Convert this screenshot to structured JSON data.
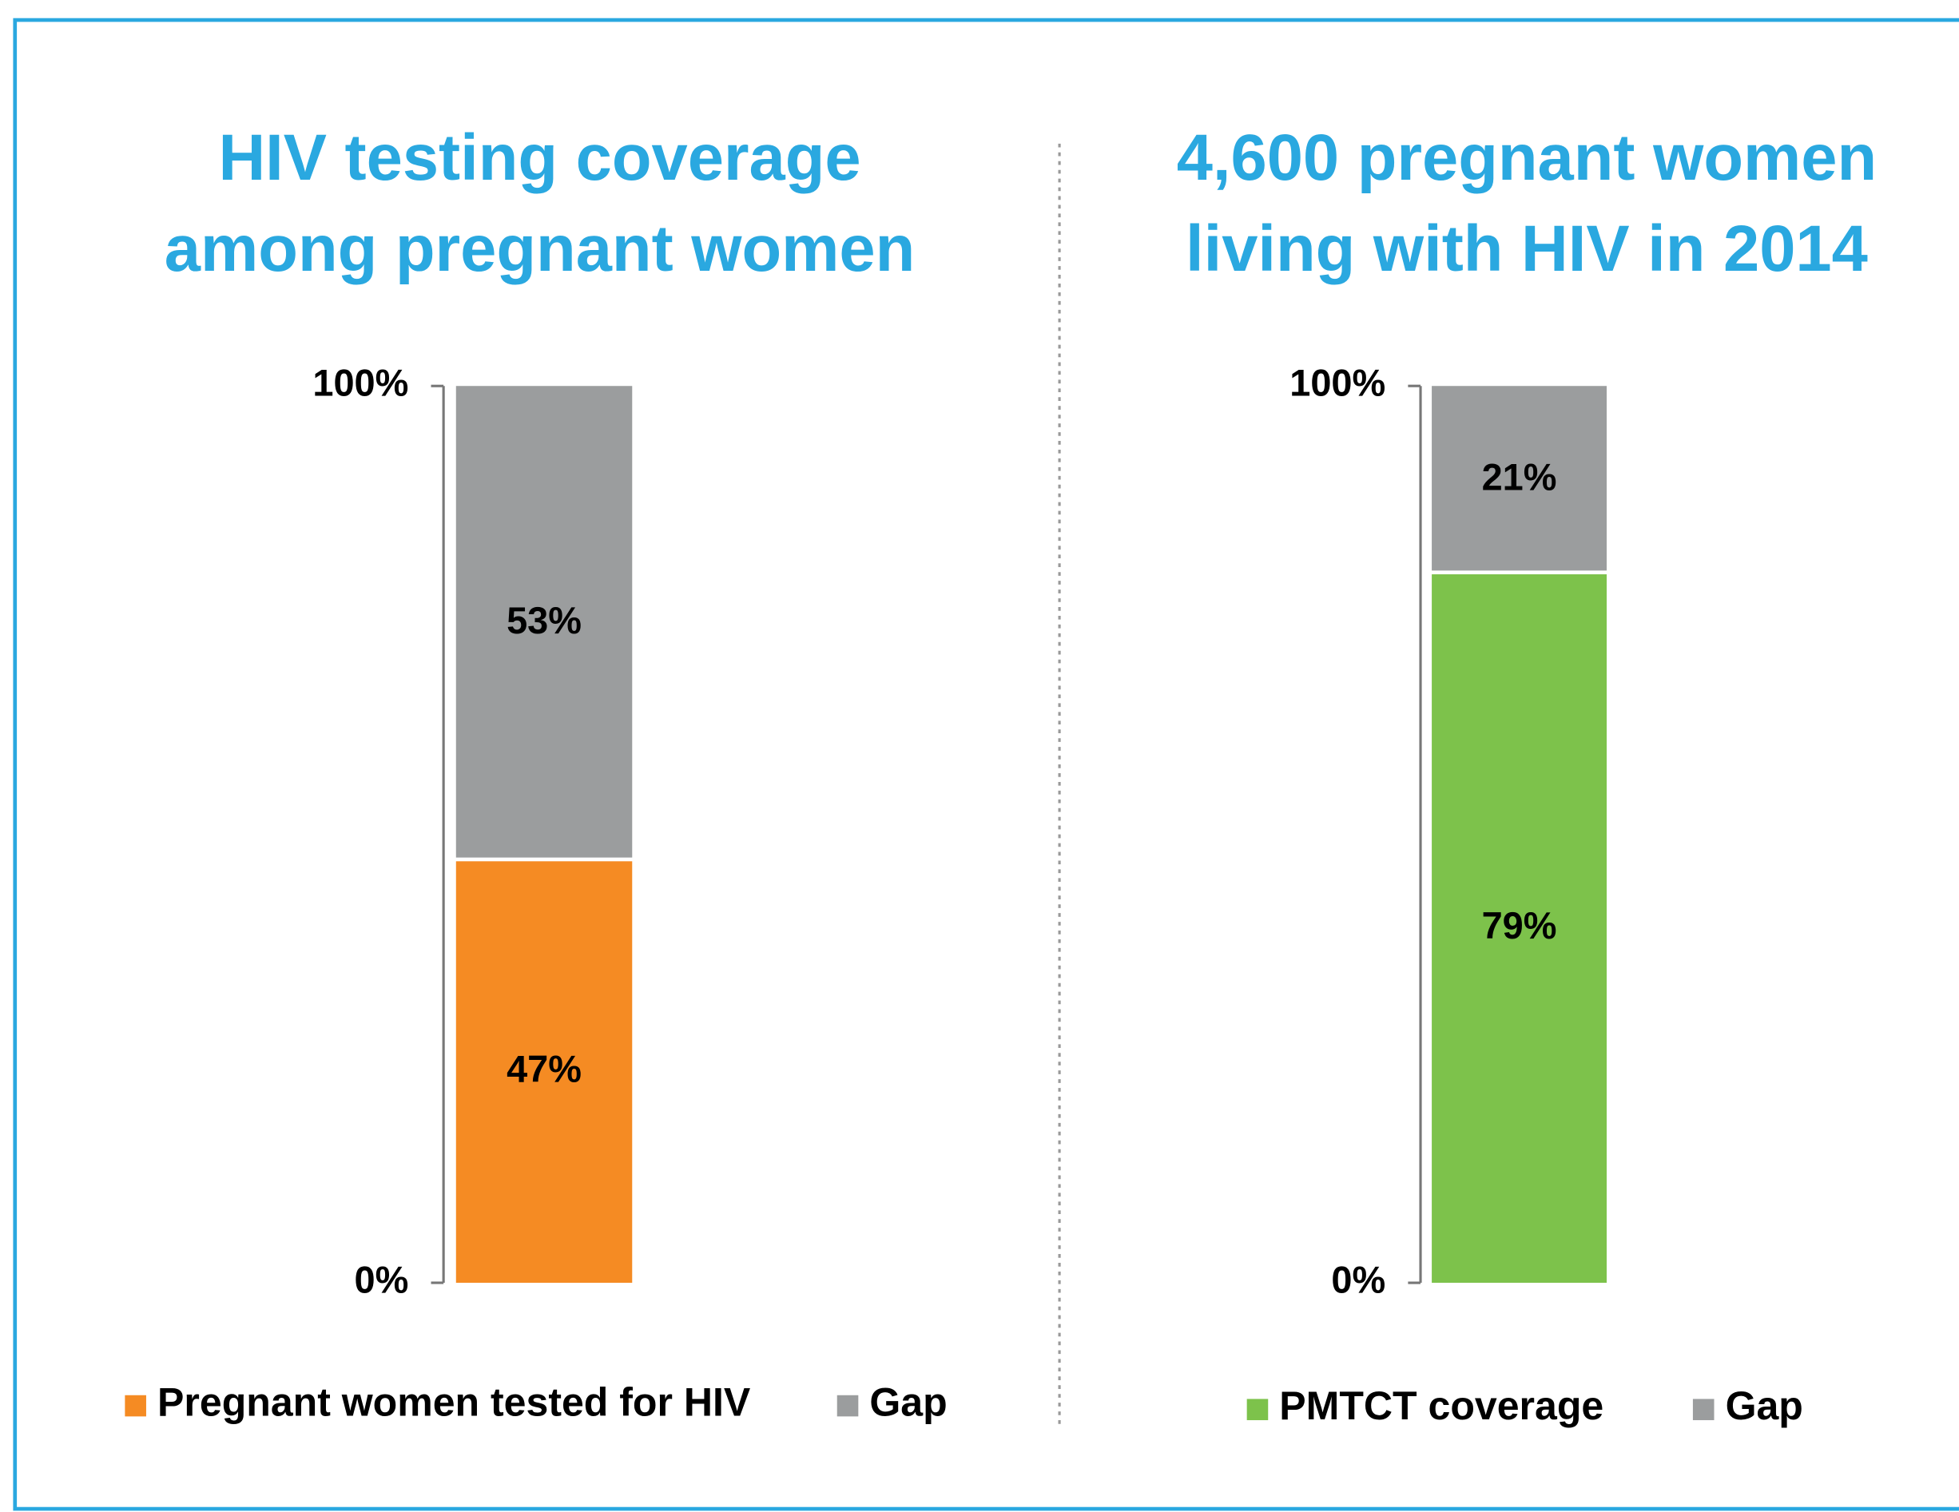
{
  "chart_data": [
    {
      "type": "stacked_bar",
      "title": [
        "HIV testing coverage",
        "among pregnant women"
      ],
      "series": [
        {
          "name": "Pregnant women tested for HIV",
          "color": "#f58b23",
          "values": [
            47
          ],
          "value_labels": [
            "47%"
          ]
        },
        {
          "name": "Gap",
          "color": "#9b9d9e",
          "values": [
            53
          ],
          "value_labels": [
            "53%"
          ]
        }
      ],
      "ylim": [
        0,
        100
      ],
      "yticks": [
        {
          "value": 0,
          "label": "0%"
        },
        {
          "value": 100,
          "label": "100%"
        }
      ]
    },
    {
      "type": "stacked_bar",
      "title": [
        "4,600 pregnant women",
        "living with HIV in 2014"
      ],
      "series": [
        {
          "name": "PMTCT coverage",
          "color": "#7dc24b",
          "values": [
            79
          ],
          "value_labels": [
            "79%"
          ]
        },
        {
          "name": "Gap",
          "color": "#9b9d9e",
          "values": [
            21
          ],
          "value_labels": [
            "21%"
          ]
        }
      ],
      "ylim": [
        0,
        100
      ],
      "yticks": [
        {
          "value": 0,
          "label": "0%"
        },
        {
          "value": 100,
          "label": "100%"
        }
      ]
    }
  ]
}
